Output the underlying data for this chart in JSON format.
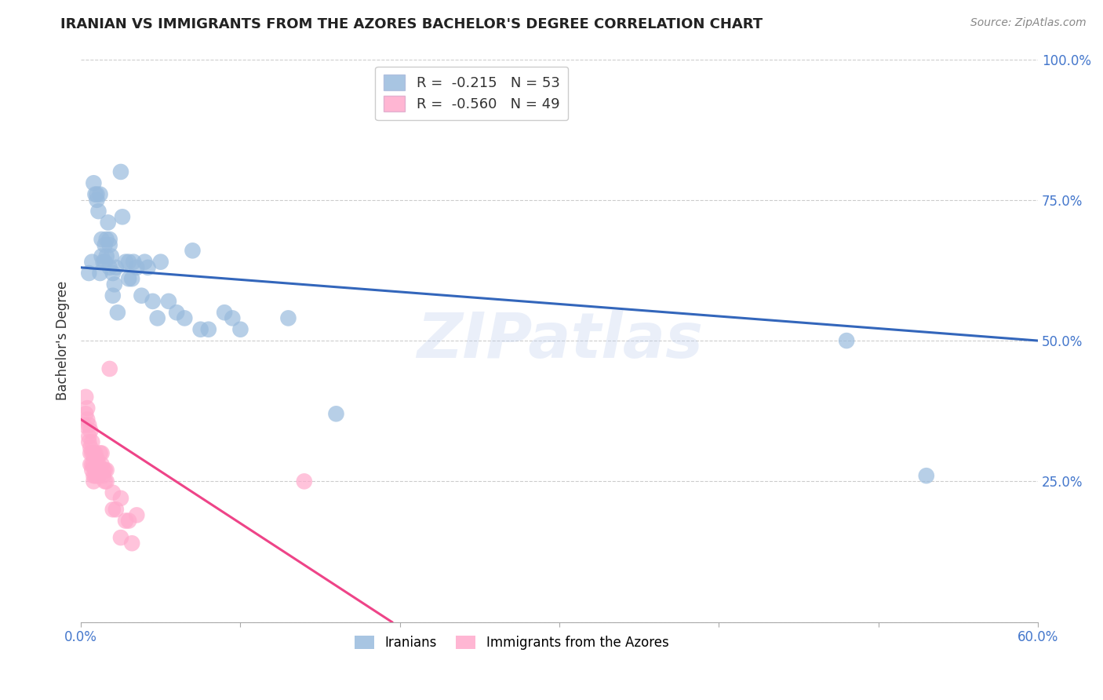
{
  "title": "IRANIAN VS IMMIGRANTS FROM THE AZORES BACHELOR'S DEGREE CORRELATION CHART",
  "source": "Source: ZipAtlas.com",
  "xlabel": "",
  "ylabel": "Bachelor's Degree",
  "xlim": [
    0,
    0.6
  ],
  "ylim": [
    0,
    1.0
  ],
  "xticks": [
    0.0,
    0.1,
    0.2,
    0.3,
    0.4,
    0.5,
    0.6
  ],
  "xticklabels": [
    "0.0%",
    "",
    "",
    "",
    "",
    "",
    "60.0%"
  ],
  "yticks": [
    0.0,
    0.25,
    0.5,
    0.75,
    1.0
  ],
  "yticklabels": [
    "",
    "25.0%",
    "50.0%",
    "75.0%",
    "100.0%"
  ],
  "legend1_label": "Iranians",
  "legend2_label": "Immigrants from the Azores",
  "blue_color": "#99BBDD",
  "pink_color": "#FFAACC",
  "blue_line_color": "#3366BB",
  "pink_line_color": "#EE4488",
  "blue_scatter": [
    [
      0.005,
      0.62
    ],
    [
      0.007,
      0.64
    ],
    [
      0.008,
      0.78
    ],
    [
      0.009,
      0.76
    ],
    [
      0.01,
      0.75
    ],
    [
      0.01,
      0.76
    ],
    [
      0.011,
      0.73
    ],
    [
      0.012,
      0.76
    ],
    [
      0.012,
      0.62
    ],
    [
      0.013,
      0.68
    ],
    [
      0.013,
      0.65
    ],
    [
      0.014,
      0.64
    ],
    [
      0.015,
      0.67
    ],
    [
      0.015,
      0.64
    ],
    [
      0.016,
      0.65
    ],
    [
      0.016,
      0.68
    ],
    [
      0.017,
      0.71
    ],
    [
      0.018,
      0.67
    ],
    [
      0.018,
      0.68
    ],
    [
      0.018,
      0.63
    ],
    [
      0.019,
      0.65
    ],
    [
      0.02,
      0.62
    ],
    [
      0.02,
      0.58
    ],
    [
      0.021,
      0.6
    ],
    [
      0.022,
      0.63
    ],
    [
      0.023,
      0.55
    ],
    [
      0.025,
      0.8
    ],
    [
      0.026,
      0.72
    ],
    [
      0.028,
      0.64
    ],
    [
      0.03,
      0.61
    ],
    [
      0.03,
      0.64
    ],
    [
      0.032,
      0.61
    ],
    [
      0.033,
      0.64
    ],
    [
      0.035,
      0.63
    ],
    [
      0.038,
      0.58
    ],
    [
      0.04,
      0.64
    ],
    [
      0.042,
      0.63
    ],
    [
      0.045,
      0.57
    ],
    [
      0.048,
      0.54
    ],
    [
      0.05,
      0.64
    ],
    [
      0.055,
      0.57
    ],
    [
      0.06,
      0.55
    ],
    [
      0.065,
      0.54
    ],
    [
      0.07,
      0.66
    ],
    [
      0.075,
      0.52
    ],
    [
      0.08,
      0.52
    ],
    [
      0.09,
      0.55
    ],
    [
      0.095,
      0.54
    ],
    [
      0.1,
      0.52
    ],
    [
      0.13,
      0.54
    ],
    [
      0.16,
      0.37
    ],
    [
      0.48,
      0.5
    ],
    [
      0.53,
      0.26
    ]
  ],
  "pink_scatter": [
    [
      0.002,
      0.35
    ],
    [
      0.003,
      0.4
    ],
    [
      0.003,
      0.37
    ],
    [
      0.004,
      0.38
    ],
    [
      0.004,
      0.36
    ],
    [
      0.005,
      0.35
    ],
    [
      0.005,
      0.33
    ],
    [
      0.005,
      0.32
    ],
    [
      0.006,
      0.34
    ],
    [
      0.006,
      0.31
    ],
    [
      0.006,
      0.3
    ],
    [
      0.006,
      0.28
    ],
    [
      0.007,
      0.32
    ],
    [
      0.007,
      0.3
    ],
    [
      0.007,
      0.28
    ],
    [
      0.007,
      0.27
    ],
    [
      0.008,
      0.3
    ],
    [
      0.008,
      0.28
    ],
    [
      0.008,
      0.26
    ],
    [
      0.008,
      0.25
    ],
    [
      0.009,
      0.3
    ],
    [
      0.009,
      0.27
    ],
    [
      0.009,
      0.26
    ],
    [
      0.01,
      0.29
    ],
    [
      0.01,
      0.28
    ],
    [
      0.01,
      0.26
    ],
    [
      0.011,
      0.28
    ],
    [
      0.011,
      0.26
    ],
    [
      0.012,
      0.3
    ],
    [
      0.012,
      0.27
    ],
    [
      0.013,
      0.3
    ],
    [
      0.013,
      0.28
    ],
    [
      0.014,
      0.27
    ],
    [
      0.014,
      0.26
    ],
    [
      0.015,
      0.27
    ],
    [
      0.015,
      0.25
    ],
    [
      0.016,
      0.27
    ],
    [
      0.016,
      0.25
    ],
    [
      0.018,
      0.45
    ],
    [
      0.02,
      0.23
    ],
    [
      0.02,
      0.2
    ],
    [
      0.022,
      0.2
    ],
    [
      0.025,
      0.22
    ],
    [
      0.025,
      0.15
    ],
    [
      0.028,
      0.18
    ],
    [
      0.03,
      0.18
    ],
    [
      0.032,
      0.14
    ],
    [
      0.035,
      0.19
    ],
    [
      0.14,
      0.25
    ]
  ],
  "blue_line": [
    [
      0.0,
      0.63
    ],
    [
      0.6,
      0.5
    ]
  ],
  "pink_line": [
    [
      0.0,
      0.36
    ],
    [
      0.195,
      0.0
    ]
  ],
  "background_color": "#FFFFFF",
  "grid_color": "#CCCCCC",
  "title_fontsize": 13,
  "tick_label_color": "#4477CC",
  "ylabel_color": "#333333"
}
